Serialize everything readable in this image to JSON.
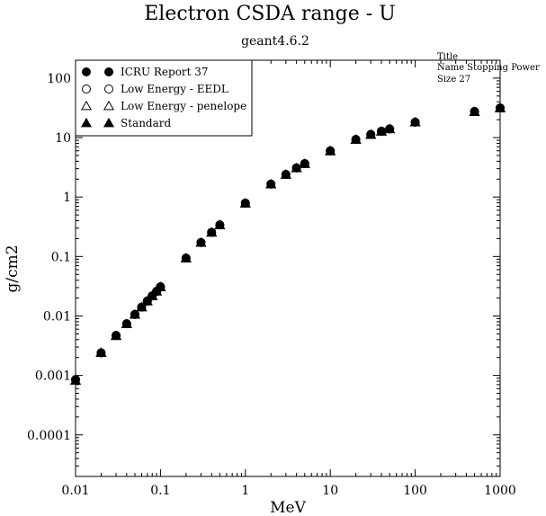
{
  "chart_data": {
    "type": "scatter",
    "title": "Electron CSDA range - U",
    "subtitle": "geant4.6.2",
    "xlabel": "MeV",
    "ylabel": "g/cm2",
    "xscale": "log",
    "yscale": "log",
    "xlim": [
      0.01,
      1000
    ],
    "ylim": [
      2e-05,
      200
    ],
    "x_ticks": [
      "0.01",
      "0.1",
      "1",
      "10",
      "100",
      "1000"
    ],
    "y_ticks": [
      "0.0001",
      "0.001",
      "0.01",
      "0.1",
      "1",
      "10",
      "100"
    ],
    "grid": false,
    "legend_position": "top-left",
    "x": [
      0.01,
      0.02,
      0.03,
      0.04,
      0.05,
      0.06,
      0.07,
      0.08,
      0.09,
      0.1,
      0.2,
      0.3,
      0.4,
      0.5,
      1,
      2,
      3,
      4,
      5,
      10,
      20,
      30,
      40,
      50,
      100,
      500,
      1000
    ],
    "series": [
      {
        "name": "ICRU Report 37",
        "marker": "filled-circle",
        "values": [
          0.00085,
          0.0024,
          0.0047,
          0.0074,
          0.0106,
          0.0141,
          0.0178,
          0.0218,
          0.026,
          0.031,
          0.094,
          0.172,
          0.255,
          0.34,
          0.79,
          1.65,
          2.4,
          3.1,
          3.65,
          6.0,
          9.3,
          11.3,
          12.8,
          14.0,
          18.2,
          27.5,
          31.5
        ]
      },
      {
        "name": "Low Energy - EEDL",
        "marker": "open-circle",
        "values": [
          0.00085,
          0.0024,
          0.0047,
          0.0074,
          0.0106,
          0.0141,
          0.0178,
          0.0218,
          0.026,
          0.031,
          0.094,
          0.172,
          0.255,
          0.34,
          0.79,
          1.65,
          2.4,
          3.1,
          3.65,
          6.0,
          9.3,
          11.3,
          12.8,
          14.0,
          18.2,
          27.5,
          31.5
        ]
      },
      {
        "name": "Low Energy - penelope",
        "marker": "open-triangle",
        "values": [
          0.00082,
          0.0024,
          0.0046,
          0.0073,
          0.0105,
          0.014,
          0.0176,
          0.0216,
          0.0258,
          0.0305,
          0.093,
          0.17,
          0.252,
          0.335,
          0.78,
          1.63,
          2.37,
          3.05,
          3.6,
          5.9,
          9.2,
          11.1,
          12.6,
          13.8,
          18.0,
          27.0,
          31.0
        ]
      },
      {
        "name": "Standard",
        "marker": "filled-triangle",
        "values": [
          0.00082,
          0.0024,
          0.0046,
          0.0073,
          0.0105,
          0.014,
          0.0176,
          0.0216,
          0.0258,
          0.0305,
          0.093,
          0.17,
          0.252,
          0.335,
          0.78,
          1.63,
          2.37,
          3.05,
          3.6,
          5.9,
          9.2,
          11.1,
          12.6,
          13.8,
          18.0,
          27.0,
          31.0
        ]
      }
    ],
    "info_box": {
      "line1": "Title",
      "line2": "Name  Stopping Power",
      "line3": "Size  27"
    }
  }
}
